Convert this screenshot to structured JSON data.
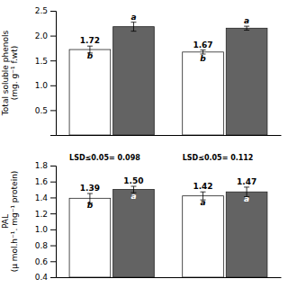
{
  "chart_data": [
    {
      "type": "bar",
      "ylabel": "Total soluble phenols\n(mg. g⁻¹ f.wt)",
      "categories": [
        null,
        null
      ],
      "series": [
        {
          "color": "white",
          "values": [
            1.72,
            1.67
          ],
          "errors": [
            0.07,
            0.04
          ],
          "annotations": [
            "b",
            "b"
          ],
          "data_labels": true
        },
        {
          "color": "#636363",
          "values": [
            2.18,
            2.15
          ],
          "errors": [
            0.09,
            0.04
          ],
          "annotations": [
            "a",
            "a"
          ],
          "data_labels": false
        }
      ],
      "ylim": [
        0,
        2.5
      ],
      "yticks": [
        0.5,
        {
          "value": 1,
          "label": "1.0"
        },
        1.5,
        {
          "value": 2,
          "label": "2.0"
        },
        2.5
      ],
      "grid": false
    },
    {
      "type": "bar",
      "ylabel": "PAL\n(μ mol.h⁻¹. mg⁻¹ protein)",
      "categories": [
        null,
        null
      ],
      "annotations": [
        "LSD≤0.05= 0.098",
        "LSD≤0.05= 0.112"
      ],
      "series": [
        {
          "color": "white",
          "values": [
            1.39,
            1.42
          ],
          "errors": [
            0.06,
            0.05
          ],
          "annotations": [
            "b",
            "a"
          ]
        },
        {
          "color": "#636363",
          "values": [
            1.5,
            1.47
          ],
          "value_labels": [
            "1.50",
            "1.47"
          ],
          "errors": [
            0.04,
            0.06
          ],
          "annotations": [
            "a",
            "a"
          ]
        }
      ],
      "data_labels": true,
      "ylim": [
        0.4,
        1.8
      ],
      "yticks": [
        0.4,
        0.6,
        0.8,
        {
          "value": 1,
          "label": "1.0"
        },
        1.2,
        1.4,
        1.6,
        1.8
      ],
      "grid": false
    }
  ]
}
